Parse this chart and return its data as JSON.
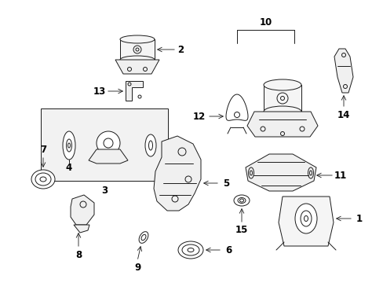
{
  "background": "#ffffff",
  "line_color": "#1a1a1a",
  "label_color": "#000000",
  "fig_w": 4.89,
  "fig_h": 3.6,
  "dpi": 100,
  "lw": 0.7,
  "fs": 8.5
}
